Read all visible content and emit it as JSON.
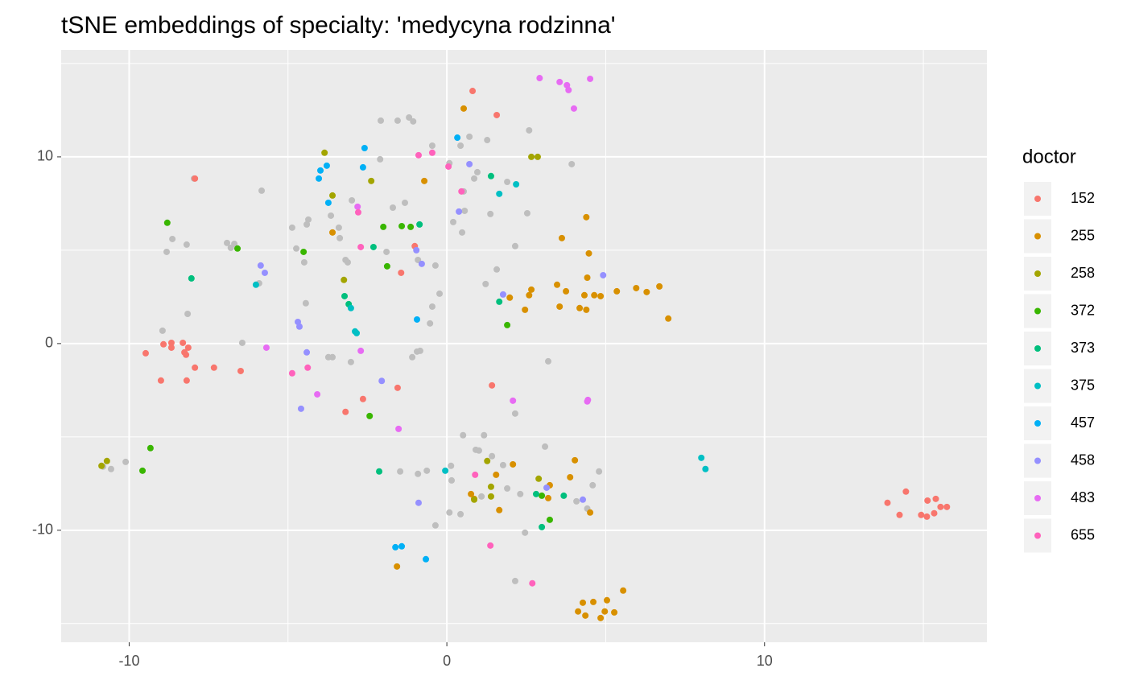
{
  "chart_data": {
    "type": "scatter",
    "title": "tSNE embeddings of specialty: 'medycyna rodzinna'",
    "legend_title": "doctor",
    "legend_position": "right",
    "grid": true,
    "xlim": [
      -12.14,
      17.0
    ],
    "ylim": [
      -16.0,
      15.73
    ],
    "xticks": [
      -10,
      0,
      10
    ],
    "yticks": [
      -10,
      0,
      10
    ],
    "xminor": [
      -5,
      5,
      15
    ],
    "yminor": [
      -15,
      -5,
      5,
      15
    ],
    "series": [
      {
        "color": "#bebebe",
        "x": [
          -2.08,
          -1.55,
          -1.19,
          -1.06,
          -0.46,
          0.08,
          0.43,
          0.71,
          1.27,
          2.59,
          3.93,
          -2.1,
          0.96,
          1.9,
          0.86,
          0.53,
          0.56,
          0.2,
          0.48,
          1.37,
          2.53,
          2.15,
          1.57,
          1.22,
          -0.23,
          -0.46,
          -0.53,
          -0.36,
          -0.91,
          -1.32,
          -1.7,
          -1.9,
          -2.99,
          -3.4,
          -3.65,
          -4.36,
          -4.41,
          -4.87,
          -4.74,
          -4.49,
          -4.44,
          -3.19,
          -3.12,
          -3.37,
          -5.83,
          -7.96,
          -8.64,
          -8.19,
          -8.82,
          -8.16,
          -8.95,
          -6.92,
          -6.8,
          -6.69,
          -5.91,
          -6.44,
          -3.73,
          -3.6,
          -3.02,
          -1.09,
          -0.94,
          -0.84,
          3.19,
          2.15,
          0.51,
          1.17,
          0.91,
          1.01,
          1.42,
          3.09,
          0.13,
          1.77,
          -0.63,
          -0.91,
          -1.47,
          1.9,
          2.31,
          1.09,
          4.79,
          4.59,
          4.08,
          4.42,
          0.08,
          0.43,
          -0.36,
          2.46,
          2.15,
          0.15,
          -10.11,
          -10.57,
          -10.82
        ],
        "y": [
          11.94,
          11.94,
          12.11,
          11.9,
          10.6,
          9.66,
          10.6,
          11.08,
          10.9,
          11.42,
          9.61,
          9.87,
          9.18,
          8.66,
          8.84,
          8.15,
          7.11,
          6.51,
          5.95,
          6.94,
          6.98,
          5.22,
          3.97,
          3.19,
          2.67,
          1.98,
          1.08,
          4.18,
          4.48,
          7.54,
          7.28,
          4.91,
          7.67,
          6.21,
          6.85,
          6.64,
          6.38,
          6.21,
          5.09,
          4.35,
          2.16,
          4.48,
          4.35,
          5.65,
          8.19,
          8.84,
          5.6,
          5.3,
          4.91,
          1.59,
          0.69,
          5.39,
          5.13,
          5.34,
          3.23,
          0.04,
          -0.73,
          -0.73,
          -0.99,
          -0.73,
          -0.43,
          -0.39,
          -0.95,
          -3.75,
          -4.91,
          -4.91,
          -5.69,
          -5.73,
          -6.03,
          -5.52,
          -6.55,
          -6.51,
          -6.81,
          -6.98,
          -6.85,
          -7.76,
          -8.06,
          -8.19,
          -6.85,
          -7.59,
          -8.45,
          -8.84,
          -9.05,
          -9.14,
          -9.74,
          -10.13,
          -12.72,
          -7.33,
          -6.34,
          -6.72,
          -6.59
        ]
      },
      {
        "name": "152",
        "color": "#F8766D",
        "x": [
          0.81,
          1.57,
          -1.01,
          -1.44,
          -9.48,
          -8.92,
          -8.67,
          -8.67,
          -8.31,
          -8.26,
          -8.21,
          -8.14,
          -7.93,
          -7.33,
          -6.49,
          -9.0,
          -8.19,
          -3.19,
          -2.64,
          -1.55,
          1.42,
          13.87,
          14.25,
          14.45,
          14.93,
          15.13,
          15.39,
          15.54,
          15.74,
          15.34,
          15.11,
          -7.93
        ],
        "y": [
          13.53,
          12.24,
          5.22,
          3.79,
          -0.52,
          -0.04,
          0.04,
          -0.22,
          0.04,
          -0.47,
          -0.6,
          -0.22,
          -1.29,
          -1.29,
          -1.47,
          -1.98,
          -1.98,
          -3.66,
          -2.97,
          -2.37,
          -2.24,
          -8.53,
          -9.18,
          -7.93,
          -9.18,
          -8.41,
          -8.32,
          -8.75,
          -8.75,
          -9.09,
          -9.27,
          8.84
        ]
      },
      {
        "name": "255",
        "color": "#D89000",
        "x": [
          0.53,
          -0.71,
          -3.6,
          4.39,
          3.62,
          4.47,
          4.42,
          3.47,
          3.75,
          4.33,
          4.64,
          4.84,
          5.35,
          5.96,
          6.29,
          6.69,
          6.97,
          2.66,
          2.59,
          1.98,
          2.46,
          3.55,
          4.18,
          4.39,
          4.03,
          2.08,
          1.55,
          3.24,
          3.88,
          0.76,
          0.86,
          1.65,
          4.51,
          -1.57,
          5.55,
          5.04,
          4.61,
          4.28,
          4.13,
          4.36,
          4.84,
          4.97,
          5.27,
          3.19
        ],
        "y": [
          12.59,
          8.71,
          5.95,
          6.77,
          5.65,
          4.83,
          3.53,
          3.15,
          2.8,
          2.59,
          2.59,
          2.54,
          2.8,
          2.97,
          2.76,
          3.06,
          1.34,
          2.89,
          2.59,
          2.46,
          1.81,
          1.98,
          1.9,
          1.81,
          -6.25,
          -6.47,
          -7.03,
          -7.59,
          -7.16,
          -8.06,
          -8.32,
          -8.92,
          -9.05,
          -11.94,
          -13.23,
          -13.75,
          -13.84,
          -13.88,
          -14.35,
          -14.57,
          -14.7,
          -14.35,
          -14.4,
          -8.28
        ]
      },
      {
        "name": "258",
        "color": "#A3A500",
        "x": [
          -3.85,
          -3.6,
          -2.38,
          2.66,
          2.86,
          -3.24,
          1.27,
          1.39,
          1.39,
          2.89,
          0.86,
          -10.87,
          -10.7
        ],
        "y": [
          10.22,
          7.93,
          8.71,
          10.0,
          10.0,
          3.41,
          -6.29,
          -7.67,
          -8.19,
          -7.24,
          -8.36,
          -6.55,
          -6.29
        ]
      },
      {
        "name": "372",
        "color": "#39B600",
        "x": [
          -8.8,
          -6.59,
          -4.51,
          -2.0,
          -1.42,
          -1.14,
          -1.88,
          1.9,
          -2.43,
          -9.33,
          -9.58,
          2.99,
          3.24
        ],
        "y": [
          6.47,
          5.09,
          4.91,
          6.25,
          6.29,
          6.25,
          4.14,
          0.99,
          -3.88,
          -5.6,
          -6.81,
          -8.15,
          -9.44
        ]
      },
      {
        "name": "373",
        "color": "#00BF7D",
        "x": [
          1.39,
          -2.31,
          -0.86,
          -8.04,
          -3.22,
          -3.09,
          1.65,
          -2.13,
          2.81,
          2.99,
          3.68
        ],
        "y": [
          8.97,
          5.17,
          6.38,
          3.49,
          2.54,
          2.11,
          2.24,
          -6.85,
          -8.06,
          -9.83,
          -8.15
        ]
      },
      {
        "name": "375",
        "color": "#00BFC4",
        "x": [
          2.18,
          1.65,
          -6.01,
          -3.02,
          -2.89,
          -2.84,
          -0.05,
          8.01,
          8.14
        ],
        "y": [
          8.53,
          8.02,
          3.15,
          1.9,
          0.65,
          0.56,
          -6.81,
          -6.12,
          -6.72
        ]
      },
      {
        "name": "457",
        "color": "#00B0F6",
        "x": [
          -2.59,
          0.33,
          -3.78,
          -3.98,
          -4.03,
          -2.64,
          -3.73,
          -0.94,
          -1.62,
          -1.42,
          -0.66
        ],
        "y": [
          10.47,
          11.03,
          9.53,
          9.27,
          8.84,
          9.44,
          7.54,
          1.29,
          -10.91,
          -10.86,
          -11.55
        ]
      },
      {
        "name": "458",
        "color": "#9590FF",
        "x": [
          0.71,
          0.38,
          1.77,
          4.92,
          -5.86,
          -5.73,
          -0.96,
          -0.79,
          -4.69,
          -4.64,
          -4.41,
          -2.05,
          -4.59,
          -0.89,
          3.14,
          4.28
        ],
        "y": [
          9.61,
          7.07,
          2.63,
          3.66,
          4.18,
          3.79,
          5.0,
          4.27,
          1.16,
          0.91,
          -0.47,
          -2.0,
          -3.49,
          -8.53,
          -7.72,
          -8.36
        ]
      },
      {
        "name": "483",
        "color": "#E76BF3",
        "x": [
          2.92,
          3.55,
          3.78,
          3.83,
          4.51,
          4.0,
          -2.81,
          -5.68,
          -2.71,
          -4.08,
          -1.52,
          2.08,
          4.44,
          4.42
        ],
        "y": [
          14.22,
          14.01,
          13.84,
          13.58,
          14.18,
          12.59,
          7.33,
          -0.22,
          -0.39,
          -2.72,
          -4.57,
          -3.06,
          -3.02,
          -3.1
        ]
      },
      {
        "name": "655",
        "color": "#FF62BC",
        "x": [
          -0.89,
          -0.46,
          0.05,
          0.46,
          -2.79,
          -2.71,
          -4.38,
          -4.87,
          0.89,
          1.37,
          2.69
        ],
        "y": [
          10.09,
          10.22,
          9.48,
          8.15,
          7.03,
          5.17,
          -1.29,
          -1.59,
          -7.03,
          -10.82,
          -12.84
        ]
      }
    ]
  }
}
